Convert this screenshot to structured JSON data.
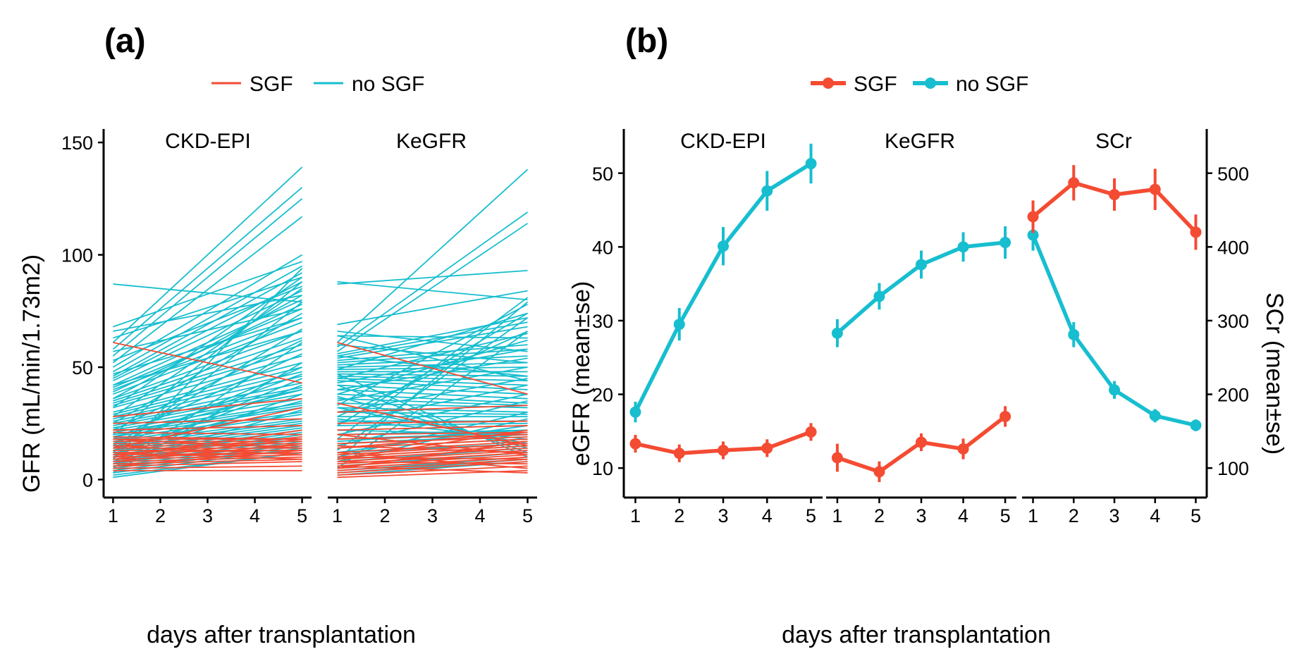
{
  "colors": {
    "sgf": "#F44B33",
    "nosgf": "#17BECF"
  },
  "chart_data": [
    {
      "type": "line",
      "panel_label": "(a)",
      "legend": [
        "SGF",
        "no SGF"
      ],
      "facets": [
        "CKD-EPI",
        "KeGFR"
      ],
      "xlabel": "days after transplantation",
      "ylabel": "GFR (mL/min/1.73m2)",
      "x": [
        1,
        5
      ],
      "xticks": [
        "1",
        "2",
        "3",
        "4",
        "5"
      ],
      "yticks": [
        "0",
        "50",
        "100",
        "150"
      ],
      "ylim": [
        -8,
        156
      ],
      "xlim": [
        0.8,
        5.2
      ],
      "series": {
        "CKD-EPI": {
          "no SGF": [
            [
              87,
              79
            ],
            [
              68,
              97
            ],
            [
              61,
              139
            ],
            [
              58,
              130
            ],
            [
              55,
              125
            ],
            [
              52,
              117
            ],
            [
              50,
              100
            ],
            [
              48,
              95
            ],
            [
              46,
              92
            ],
            [
              45,
              88
            ],
            [
              44,
              84
            ],
            [
              42,
              80
            ],
            [
              41,
              76
            ],
            [
              40,
              72
            ],
            [
              38,
              70
            ],
            [
              36,
              66
            ],
            [
              35,
              63
            ],
            [
              34,
              60
            ],
            [
              33,
              58
            ],
            [
              32,
              55
            ],
            [
              30,
              52
            ],
            [
              29,
              50
            ],
            [
              28,
              48
            ],
            [
              27,
              46
            ],
            [
              26,
              43
            ],
            [
              25,
              41
            ],
            [
              24,
              40
            ],
            [
              23,
              38
            ],
            [
              22,
              36
            ],
            [
              21,
              34
            ],
            [
              20,
              33
            ],
            [
              19,
              32
            ],
            [
              18,
              30
            ],
            [
              17,
              29
            ],
            [
              16,
              27
            ],
            [
              15,
              26
            ],
            [
              14,
              25
            ],
            [
              13,
              24
            ],
            [
              12,
              23
            ],
            [
              11,
              22
            ],
            [
              10,
              21
            ],
            [
              9,
              20
            ],
            [
              8,
              19
            ],
            [
              7,
              18
            ],
            [
              6,
              17
            ],
            [
              5,
              16
            ],
            [
              4,
              15
            ],
            [
              3,
              14
            ],
            [
              2,
              12
            ],
            [
              1,
              12
            ],
            [
              3,
              52
            ],
            [
              5,
              61
            ],
            [
              9,
              94
            ],
            [
              12,
              79
            ],
            [
              15,
              67
            ],
            [
              20,
              88
            ],
            [
              25,
              74
            ],
            [
              28,
              85
            ],
            [
              32,
              90
            ],
            [
              36,
              82
            ],
            [
              39,
              78
            ],
            [
              42,
              66
            ],
            [
              47,
              72
            ],
            [
              53,
              86
            ],
            [
              57,
              76
            ],
            [
              63,
              90
            ],
            [
              66,
              82
            ],
            [
              10,
              45
            ],
            [
              14,
              50
            ],
            [
              18,
              56
            ],
            [
              22,
              62
            ],
            [
              8,
              38
            ],
            [
              11,
              42
            ],
            [
              16,
              47
            ],
            [
              7,
              31
            ],
            [
              13,
              35
            ],
            [
              19,
              40
            ]
          ],
          "SGF": [
            [
              61,
              43
            ],
            [
              28,
              36
            ],
            [
              25,
              27
            ],
            [
              22,
              24
            ],
            [
              21,
              20
            ],
            [
              19,
              18
            ],
            [
              18,
              18
            ],
            [
              17,
              17
            ],
            [
              16,
              16
            ],
            [
              15,
              15
            ],
            [
              14,
              14
            ],
            [
              13,
              13
            ],
            [
              12,
              13
            ],
            [
              11,
              12
            ],
            [
              10,
              12
            ],
            [
              9,
              11
            ],
            [
              8,
              10
            ],
            [
              7,
              9
            ],
            [
              6,
              8
            ],
            [
              5,
              6
            ],
            [
              4,
              4
            ],
            [
              14,
              32
            ],
            [
              10,
              22
            ],
            [
              8,
              16
            ],
            [
              6,
              13
            ],
            [
              12,
              9
            ],
            [
              15,
              11
            ],
            [
              18,
              14
            ],
            [
              9,
              18
            ],
            [
              11,
              19
            ]
          ]
        },
        "KeGFR": {
          "no SGF": [
            [
              88,
              80
            ],
            [
              87,
              93
            ],
            [
              69,
              84
            ],
            [
              66,
              57
            ],
            [
              64,
              63
            ],
            [
              61,
              138
            ],
            [
              59,
              119
            ],
            [
              57,
              114
            ],
            [
              56,
              72
            ],
            [
              55,
              70
            ],
            [
              54,
              68
            ],
            [
              53,
              60
            ],
            [
              52,
              58
            ],
            [
              51,
              55
            ],
            [
              50,
              52
            ],
            [
              49,
              50
            ],
            [
              48,
              48
            ],
            [
              47,
              46
            ],
            [
              46,
              44
            ],
            [
              45,
              42
            ],
            [
              44,
              40
            ],
            [
              42,
              38
            ],
            [
              40,
              36
            ],
            [
              38,
              34
            ],
            [
              36,
              33
            ],
            [
              34,
              32
            ],
            [
              32,
              30
            ],
            [
              30,
              29
            ],
            [
              28,
              28
            ],
            [
              26,
              26
            ],
            [
              24,
              25
            ],
            [
              22,
              24
            ],
            [
              20,
              22
            ],
            [
              18,
              21
            ],
            [
              16,
              20
            ],
            [
              14,
              18
            ],
            [
              12,
              16
            ],
            [
              10,
              15
            ],
            [
              8,
              14
            ],
            [
              6,
              12
            ],
            [
              4,
              10
            ],
            [
              3,
              9
            ],
            [
              2,
              8
            ],
            [
              5,
              66
            ],
            [
              9,
              79
            ],
            [
              13,
              72
            ],
            [
              18,
              81
            ],
            [
              24,
              74
            ],
            [
              28,
              66
            ],
            [
              33,
              78
            ],
            [
              38,
              62
            ],
            [
              43,
              58
            ],
            [
              49,
              74
            ],
            [
              55,
              46
            ],
            [
              60,
              52
            ],
            [
              64,
              44
            ],
            [
              45,
              65
            ],
            [
              40,
              54
            ],
            [
              35,
              50
            ],
            [
              30,
              45
            ],
            [
              25,
              42
            ],
            [
              20,
              38
            ],
            [
              15,
              35
            ],
            [
              10,
              30
            ],
            [
              8,
              27
            ],
            [
              12,
              24
            ],
            [
              17,
              22
            ],
            [
              22,
              20
            ],
            [
              27,
              18
            ],
            [
              32,
              16
            ],
            [
              37,
              14
            ],
            [
              42,
              12
            ],
            [
              47,
              10
            ]
          ],
          "SGF": [
            [
              61,
              38
            ],
            [
              34,
              15
            ],
            [
              30,
              33
            ],
            [
              25,
              26
            ],
            [
              22,
              24
            ],
            [
              20,
              21
            ],
            [
              18,
              20
            ],
            [
              16,
              19
            ],
            [
              14,
              18
            ],
            [
              12,
              17
            ],
            [
              11,
              16
            ],
            [
              10,
              15
            ],
            [
              9,
              14
            ],
            [
              8,
              13
            ],
            [
              7,
              12
            ],
            [
              6,
              11
            ],
            [
              5,
              10
            ],
            [
              4,
              9
            ],
            [
              3,
              8
            ],
            [
              2,
              6
            ],
            [
              1,
              4
            ],
            [
              15,
              12
            ],
            [
              10,
              9
            ],
            [
              8,
              7
            ],
            [
              6,
              3
            ],
            [
              20,
              11
            ],
            [
              14,
              21
            ],
            [
              9,
              22
            ],
            [
              5,
              17
            ],
            [
              12,
              5
            ]
          ]
        }
      }
    },
    {
      "type": "line",
      "panel_label": "(b)",
      "legend": [
        "SGF",
        "no SGF"
      ],
      "facets": [
        "CKD-EPI",
        "KeGFR",
        "SCr"
      ],
      "xlabel": "days after transplantation",
      "ylabel": "eGFR (mean±se)",
      "ylabel2": "SCr (mean±se)",
      "x": [
        1,
        2,
        3,
        4,
        5
      ],
      "xticks": [
        "1",
        "2",
        "3",
        "4",
        "5"
      ],
      "yticks": [
        "10",
        "20",
        "30",
        "40",
        "50"
      ],
      "yticks2": [
        "100",
        "200",
        "300",
        "400",
        "500"
      ],
      "ylim": [
        6,
        56
      ],
      "ylim2": [
        60,
        560
      ],
      "xlim": [
        0.8,
        5.2
      ],
      "series": {
        "CKD-EPI": {
          "no SGF": {
            "mean": [
              17.6,
              29.5,
              40.1,
              47.6,
              51.3
            ],
            "se": [
              1.4,
              2.2,
              2.6,
              2.7,
              2.7
            ]
          },
          "SGF": {
            "mean": [
              13.3,
              12.0,
              12.4,
              12.7,
              14.9
            ],
            "se": [
              1.2,
              1.2,
              1.2,
              1.2,
              1.2
            ]
          }
        },
        "KeGFR": {
          "no SGF": {
            "mean": [
              28.3,
              33.3,
              37.6,
              40.0,
              40.6
            ],
            "se": [
              1.9,
              1.8,
              1.9,
              2.0,
              2.2
            ]
          },
          "SGF": {
            "mean": [
              11.4,
              9.5,
              13.5,
              12.6,
              17.0
            ],
            "se": [
              1.9,
              1.4,
              1.2,
              1.4,
              1.4
            ]
          }
        },
        "SCr": {
          "no SGF": {
            "mean": [
              416,
              281,
              206,
              171,
              158
            ],
            "se": [
              21,
              17,
              12,
              9,
              8
            ]
          },
          "SGF": {
            "mean": [
              441,
              487,
              471,
              478,
              420
            ],
            "se": [
              22,
              24,
              22,
              28,
              24
            ]
          }
        }
      }
    }
  ]
}
